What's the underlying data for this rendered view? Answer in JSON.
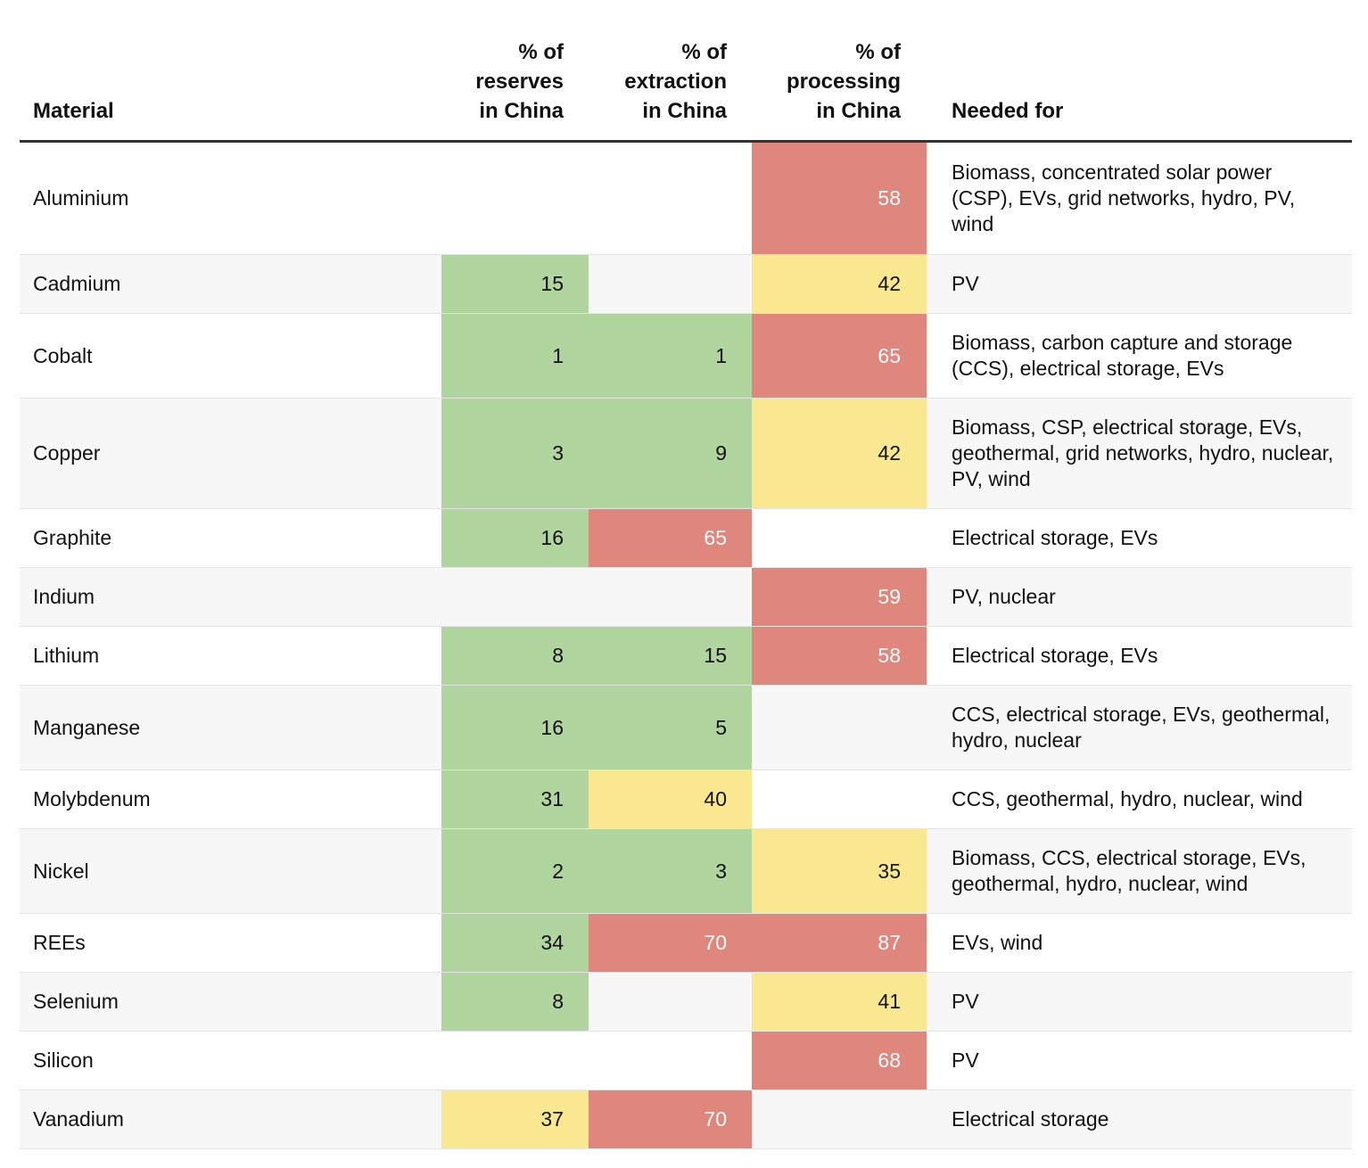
{
  "colors": {
    "low": "#b0d59f",
    "medium": "#fae890",
    "high": "#df877d"
  },
  "chart_data": {
    "type": "table",
    "columns": [
      {
        "key": "material",
        "label_lines": [
          "Material"
        ]
      },
      {
        "key": "reserves",
        "label_lines": [
          "% of",
          "reserves",
          "in China"
        ]
      },
      {
        "key": "extraction",
        "label_lines": [
          "% of",
          "extraction",
          "in China"
        ]
      },
      {
        "key": "processing",
        "label_lines": [
          "% of",
          "processing",
          "in China"
        ]
      },
      {
        "key": "needed_for",
        "label_lines": [
          "Needed for"
        ]
      }
    ],
    "rows": [
      {
        "material": "Aluminium",
        "reserves": "",
        "extraction": "",
        "processing": "58",
        "needed_for": "Biomass, concentrated solar power (CSP), EVs, grid networks, hydro, PV, wind"
      },
      {
        "material": "Cadmium",
        "reserves": "15",
        "extraction": "",
        "processing": "42",
        "needed_for": "PV"
      },
      {
        "material": "Cobalt",
        "reserves": "1",
        "extraction": "1",
        "processing": "65",
        "needed_for": "Biomass, carbon capture and storage (CCS), electrical storage, EVs"
      },
      {
        "material": "Copper",
        "reserves": "3",
        "extraction": "9",
        "processing": "42",
        "needed_for": "Biomass, CSP, electrical storage, EVs, geothermal, grid networks, hydro, nuclear, PV, wind"
      },
      {
        "material": "Graphite",
        "reserves": "16",
        "extraction": "65",
        "processing": "",
        "needed_for": "Electrical storage, EVs"
      },
      {
        "material": "Indium",
        "reserves": "",
        "extraction": "",
        "processing": "59",
        "needed_for": "PV, nuclear"
      },
      {
        "material": "Lithium",
        "reserves": "8",
        "extraction": "15",
        "processing": "58",
        "needed_for": "Electrical storage, EVs"
      },
      {
        "material": "Manganese",
        "reserves": "16",
        "extraction": "5",
        "processing": "",
        "needed_for": "CCS, electrical storage, EVs, geothermal, hydro, nuclear"
      },
      {
        "material": "Molybdenum",
        "reserves": "31",
        "extraction": "40",
        "processing": "",
        "needed_for": "CCS, geothermal, hydro, nuclear, wind"
      },
      {
        "material": "Nickel",
        "reserves": "2",
        "extraction": "3",
        "processing": "35",
        "needed_for": "Biomass, CCS, electrical storage, EVs, geothermal, hydro, nuclear, wind"
      },
      {
        "material": "REEs",
        "reserves": "34",
        "extraction": "70",
        "processing": "87",
        "needed_for": "EVs, wind"
      },
      {
        "material": "Selenium",
        "reserves": "8",
        "extraction": "",
        "processing": "41",
        "needed_for": "PV"
      },
      {
        "material": "Silicon",
        "reserves": "",
        "extraction": "",
        "processing": "68",
        "needed_for": "PV"
      },
      {
        "material": "Vanadium",
        "reserves": "37",
        "extraction": "70",
        "processing": "",
        "needed_for": "Electrical storage"
      }
    ]
  }
}
